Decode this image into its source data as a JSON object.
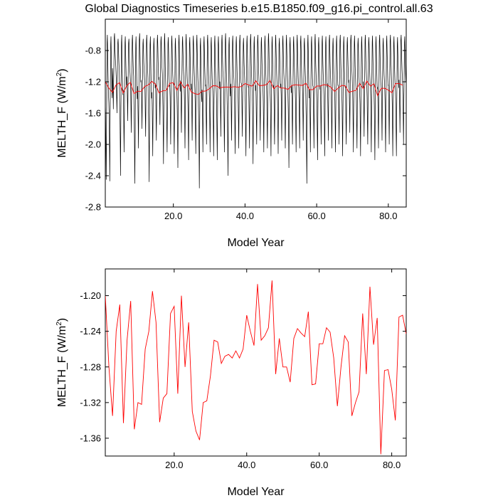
{
  "title": "Global Diagnostics Timeseries b.e15.B1850.f09_g16.pi_control.all.63",
  "chart_data": [
    {
      "type": "line",
      "title": "Global Diagnostics Timeseries b.e15.B1850.f09_g16.pi_control.all.63",
      "xlabel": "Model Year",
      "ylabel_main": "MELTH_F (W/m",
      "ylabel_sup": "2",
      "ylabel_close": ")",
      "xlim": [
        1,
        85
      ],
      "ylim": [
        -2.8,
        -0.4
      ],
      "x_ticks": [
        20.0,
        40.0,
        60.0,
        80.0
      ],
      "x_tick_labels": [
        "20.0",
        "40.0",
        "60.0",
        "80.0"
      ],
      "y_ticks": [
        -2.8,
        -2.4,
        -2.0,
        -1.6,
        -1.2,
        -0.8
      ],
      "y_tick_labels": [
        "-2.8",
        "-2.4",
        "-2.0",
        "-1.6",
        "-1.2",
        "-0.8"
      ],
      "grid": false,
      "series": [
        {
          "color": "#000000",
          "x_start": 1.0,
          "x_step": 0.0833333,
          "monthly_pattern": [
            -1.3,
            -1.45,
            -1.75,
            -2.1,
            -1.6,
            -1.15,
            -0.7,
            -0.62,
            -0.8,
            -1.0,
            -1.15,
            -1.25
          ],
          "year_min": [
            -2.45,
            -2.47,
            -1.55,
            -1.6,
            -2.4,
            -2.1,
            -1.7,
            -1.85,
            -2.5,
            -2.05,
            -1.8,
            -1.9,
            -2.48,
            -2.15,
            -1.95,
            -1.75,
            -2.25,
            -2.1,
            -2.0,
            -2.12,
            -2.3,
            -1.85,
            -2.05,
            -2.2,
            -1.95,
            -2.12,
            -2.56,
            -2.1,
            -2.0,
            -2.1,
            -2.15,
            -2.2,
            -1.9,
            -2.1,
            -2.4,
            -1.95,
            -2.12,
            -2.05,
            -1.9,
            -2.15,
            -2.05,
            -2.25,
            -2.0,
            -1.95,
            -2.1,
            -2.05,
            -2.15,
            -2.0,
            -2.12,
            -1.95,
            -2.05,
            -2.3,
            -2.0,
            -2.1,
            -2.05,
            -1.95,
            -2.5,
            -2.1,
            -2.05,
            -2.2,
            -2.0,
            -2.15,
            -1.95,
            -2.05,
            -2.1,
            -2.0,
            -2.15,
            -2.0,
            -1.85,
            -2.1,
            -2.05,
            -2.15,
            -1.9,
            -2.0,
            -2.1,
            -2.2,
            -2.05,
            -1.95,
            -2.1,
            -2.0,
            -2.15,
            -2.15,
            -1.85,
            -2.0
          ],
          "year_max": [
            -0.6,
            -0.62,
            -0.58,
            -0.65,
            -0.6,
            -0.62,
            -0.65,
            -0.6,
            -0.62,
            -0.58,
            -0.65,
            -0.6,
            -0.62,
            -0.64,
            -0.6,
            -0.62,
            -0.58,
            -0.63,
            -0.61,
            -0.64,
            -0.6,
            -0.62,
            -0.59,
            -0.63,
            -0.61,
            -0.6,
            -0.64,
            -0.62,
            -0.6,
            -0.63,
            -0.61,
            -0.62,
            -0.6,
            -0.58,
            -0.63,
            -0.61,
            -0.62,
            -0.6,
            -0.64,
            -0.61,
            -0.59,
            -0.62,
            -0.6,
            -0.63,
            -0.61,
            -0.58,
            -0.62,
            -0.6,
            -0.64,
            -0.61,
            -0.6,
            -0.63,
            -0.62,
            -0.6,
            -0.61,
            -0.64,
            -0.6,
            -0.62,
            -0.59,
            -0.63,
            -0.61,
            -0.62,
            -0.6,
            -0.64,
            -0.61,
            -0.6,
            -0.62,
            -0.63,
            -0.6,
            -0.61,
            -0.64,
            -0.62,
            -0.6,
            -0.63,
            -0.61,
            -0.62,
            -0.6,
            -0.64,
            -0.61,
            -0.6,
            -0.62,
            -0.63,
            -0.6,
            -0.62
          ]
        },
        {
          "color": "#ff0000",
          "x": [
            1,
            2,
            3,
            4,
            5,
            6,
            7,
            8,
            9,
            10,
            11,
            12,
            13,
            14,
            15,
            16,
            17,
            18,
            19,
            20,
            21,
            22,
            23,
            24,
            25,
            26,
            27,
            28,
            29,
            30,
            31,
            32,
            33,
            34,
            35,
            36,
            37,
            38,
            39,
            40,
            41,
            42,
            43,
            44,
            45,
            46,
            47,
            48,
            49,
            50,
            51,
            52,
            53,
            54,
            55,
            56,
            57,
            58,
            59,
            60,
            61,
            62,
            63,
            64,
            65,
            66,
            67,
            68,
            69,
            70,
            71,
            72,
            73,
            74,
            75,
            76,
            77,
            78,
            79,
            80,
            81,
            82,
            83,
            84
          ],
          "y": [
            -1.2,
            -1.28,
            -1.335,
            -1.24,
            -1.21,
            -1.343,
            -1.25,
            -1.206,
            -1.35,
            -1.32,
            -1.322,
            -1.26,
            -1.24,
            -1.195,
            -1.23,
            -1.342,
            -1.315,
            -1.31,
            -1.22,
            -1.212,
            -1.31,
            -1.2,
            -1.28,
            -1.23,
            -1.33,
            -1.352,
            -1.362,
            -1.32,
            -1.318,
            -1.29,
            -1.25,
            -1.252,
            -1.276,
            -1.268,
            -1.266,
            -1.27,
            -1.262,
            -1.27,
            -1.26,
            -1.222,
            -1.24,
            -1.256,
            -1.187,
            -1.25,
            -1.245,
            -1.236,
            -1.183,
            -1.288,
            -1.248,
            -1.28,
            -1.28,
            -1.297,
            -1.248,
            -1.237,
            -1.242,
            -1.246,
            -1.218,
            -1.3,
            -1.299,
            -1.254,
            -1.254,
            -1.236,
            -1.241,
            -1.27,
            -1.324,
            -1.28,
            -1.245,
            -1.252,
            -1.335,
            -1.32,
            -1.308,
            -1.22,
            -1.288,
            -1.19,
            -1.255,
            -1.225,
            -1.378,
            -1.284,
            -1.283,
            -1.305,
            -1.34,
            -1.224,
            -1.222,
            -1.243
          ]
        }
      ]
    },
    {
      "type": "line",
      "xlabel": "Model Year",
      "ylabel_main": "MELTH_F (W/m",
      "ylabel_sup": "2",
      "ylabel_close": ")",
      "xlim": [
        1,
        84
      ],
      "ylim": [
        -1.38,
        -1.17
      ],
      "x_ticks": [
        20.0,
        40.0,
        60.0,
        80.0
      ],
      "x_tick_labels": [
        "20.0",
        "40.0",
        "60.0",
        "80.0"
      ],
      "y_ticks": [
        -1.36,
        -1.32,
        -1.28,
        -1.24,
        -1.2
      ],
      "y_tick_labels": [
        "-1.36",
        "-1.32",
        "-1.28",
        "-1.24",
        "-1.20"
      ],
      "grid": false,
      "series": [
        {
          "color": "#ff0000",
          "x": [
            1,
            2,
            3,
            4,
            5,
            6,
            7,
            8,
            9,
            10,
            11,
            12,
            13,
            14,
            15,
            16,
            17,
            18,
            19,
            20,
            21,
            22,
            23,
            24,
            25,
            26,
            27,
            28,
            29,
            30,
            31,
            32,
            33,
            34,
            35,
            36,
            37,
            38,
            39,
            40,
            41,
            42,
            43,
            44,
            45,
            46,
            47,
            48,
            49,
            50,
            51,
            52,
            53,
            54,
            55,
            56,
            57,
            58,
            59,
            60,
            61,
            62,
            63,
            64,
            65,
            66,
            67,
            68,
            69,
            70,
            71,
            72,
            73,
            74,
            75,
            76,
            77,
            78,
            79,
            80,
            81,
            82,
            83,
            84
          ],
          "y": [
            -1.2,
            -1.28,
            -1.335,
            -1.24,
            -1.21,
            -1.343,
            -1.25,
            -1.206,
            -1.35,
            -1.32,
            -1.322,
            -1.26,
            -1.24,
            -1.195,
            -1.23,
            -1.342,
            -1.315,
            -1.31,
            -1.22,
            -1.212,
            -1.31,
            -1.2,
            -1.28,
            -1.23,
            -1.33,
            -1.352,
            -1.362,
            -1.32,
            -1.318,
            -1.29,
            -1.25,
            -1.252,
            -1.276,
            -1.268,
            -1.266,
            -1.27,
            -1.262,
            -1.27,
            -1.26,
            -1.222,
            -1.24,
            -1.256,
            -1.187,
            -1.25,
            -1.245,
            -1.236,
            -1.183,
            -1.288,
            -1.248,
            -1.28,
            -1.28,
            -1.297,
            -1.248,
            -1.237,
            -1.242,
            -1.246,
            -1.218,
            -1.3,
            -1.299,
            -1.254,
            -1.254,
            -1.236,
            -1.241,
            -1.27,
            -1.324,
            -1.28,
            -1.245,
            -1.252,
            -1.335,
            -1.32,
            -1.308,
            -1.22,
            -1.288,
            -1.19,
            -1.255,
            -1.225,
            -1.378,
            -1.284,
            -1.283,
            -1.305,
            -1.34,
            -1.224,
            -1.222,
            -1.243
          ]
        }
      ]
    }
  ]
}
